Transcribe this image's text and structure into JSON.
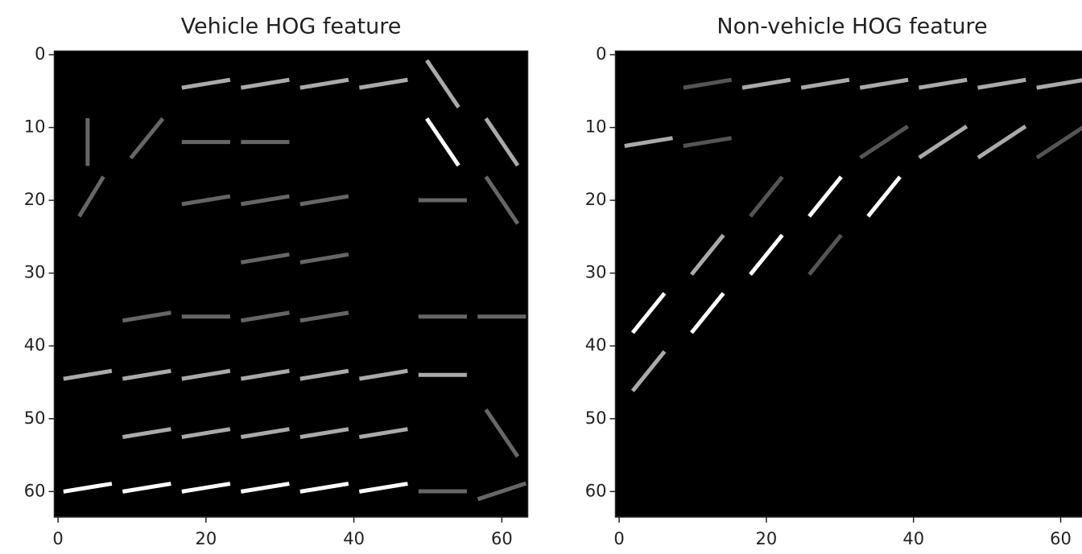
{
  "chart_data": [
    {
      "type": "image",
      "title": "Vehicle HOG feature",
      "xlim": [
        -0.5,
        63.5
      ],
      "ylim": [
        63.5,
        -0.5
      ],
      "xticks": [
        0,
        20,
        40,
        60
      ],
      "yticks": [
        0,
        10,
        20,
        30,
        40,
        50,
        60
      ]
    },
    {
      "type": "image",
      "title": "Non-vehicle HOG feature",
      "xlim": [
        -0.5,
        63.5
      ],
      "ylim": [
        63.5,
        -0.5
      ],
      "xticks": [
        0,
        20,
        40,
        60
      ],
      "yticks": [
        0,
        10,
        20,
        30,
        40,
        50,
        60
      ]
    }
  ]
}
